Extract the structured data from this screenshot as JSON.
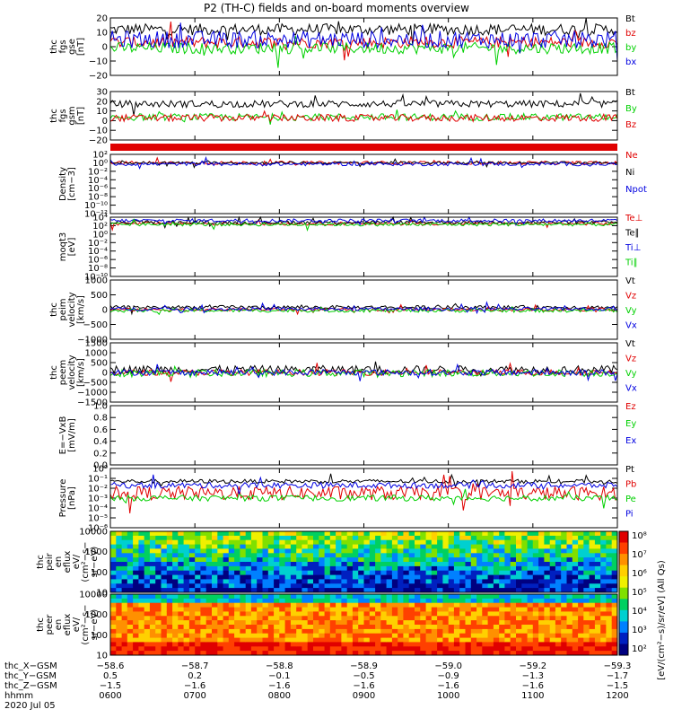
{
  "title": "P2 (TH-C) fields and on-board moments overview",
  "colors": {
    "black": "#000000",
    "red": "#e00000",
    "green": "#00d000",
    "blue": "#0000e0",
    "frame": "#000000"
  },
  "chart_data": [
    {
      "type": "line",
      "id": "fgs_gse",
      "ylabel": [
        "thc",
        "fgs",
        "gse",
        "[nT]"
      ],
      "yticks": [
        "20",
        "10",
        "0",
        "−10",
        "−20"
      ],
      "ylim": [
        -20,
        20
      ],
      "series": [
        {
          "name": "Bt",
          "color": "#000000",
          "level": 12,
          "amp": 4
        },
        {
          "name": "bz",
          "color": "#e00000",
          "level": 3,
          "amp": 4
        },
        {
          "name": "by",
          "color": "#00d000",
          "level": -1,
          "amp": 4
        },
        {
          "name": "bx",
          "color": "#0000e0",
          "level": 5,
          "amp": 6
        }
      ]
    },
    {
      "type": "line",
      "id": "fgs_gsm",
      "ylabel": [
        "thc",
        "fgs",
        "gsm",
        "[nT]"
      ],
      "yticks": [
        "30",
        "20",
        "10",
        "0",
        "−10",
        "−20"
      ],
      "ylim": [
        -25,
        30
      ],
      "series": [
        {
          "name": "Bt",
          "color": "#000000",
          "level": 16,
          "amp": 4
        },
        {
          "name": "By",
          "color": "#00d000",
          "level": 1,
          "amp": 4
        },
        {
          "name": "Bz",
          "color": "#e00000",
          "level": 0,
          "amp": 4
        }
      ]
    },
    {
      "type": "line",
      "id": "density",
      "ylabel": [
        "Density",
        "[cm−3]"
      ],
      "yticks": [
        "10²",
        "10⁰",
        "10⁻²",
        "10⁻⁴",
        "10⁻⁶",
        "10⁻⁸",
        "10⁻¹⁰",
        "10⁻¹²"
      ],
      "ylim": [
        -12,
        2
      ],
      "series": [
        {
          "name": "Ne",
          "color": "#e00000",
          "level": 0,
          "amp": 0.4
        },
        {
          "name": "Ni",
          "color": "#000000",
          "level": 0,
          "amp": 0.3
        },
        {
          "name": "Npot",
          "color": "#0000e0",
          "level": -0.3,
          "amp": 0.4
        }
      ]
    },
    {
      "type": "line",
      "id": "moqt3",
      "ylabel": [
        "moqt3",
        "[eV]"
      ],
      "yticks": [
        "10⁴",
        "10²",
        "10⁰",
        "10⁻²",
        "10⁻⁴",
        "10⁻⁶",
        "10⁻⁸",
        "10⁻¹⁰"
      ],
      "ylim": [
        -10,
        4
      ],
      "series": [
        {
          "name": "Te⊥",
          "color": "#e00000",
          "level": 2.5,
          "amp": 0.4
        },
        {
          "name": "Te∥",
          "color": "#000000",
          "level": 2.8,
          "amp": 0.4
        },
        {
          "name": "Ti⊥",
          "color": "#0000e0",
          "level": 3.2,
          "amp": 0.4
        },
        {
          "name": "Ti∥",
          "color": "#00d000",
          "level": 2.3,
          "amp": 0.4
        }
      ]
    },
    {
      "type": "line",
      "id": "peim_vel",
      "ylabel": [
        "thc",
        "peim",
        "velocity",
        "[km/s]"
      ],
      "yticks": [
        "1000",
        "500",
        "0",
        "−500",
        "−1000"
      ],
      "ylim": [
        -1000,
        1000
      ],
      "series": [
        {
          "name": "Vt",
          "color": "#000000",
          "level": 80,
          "amp": 60
        },
        {
          "name": "Vz",
          "color": "#e00000",
          "level": 0,
          "amp": 50
        },
        {
          "name": "Vy",
          "color": "#00d000",
          "level": -30,
          "amp": 60
        },
        {
          "name": "Vx",
          "color": "#0000e0",
          "level": 20,
          "amp": 60
        }
      ]
    },
    {
      "type": "line",
      "id": "peem_vel",
      "ylabel": [
        "thc",
        "peem",
        "velocity",
        "[km/s]"
      ],
      "yticks": [
        "1500",
        "1000",
        "500",
        "0",
        "−500",
        "−1000",
        "−1500"
      ],
      "ylim": [
        -1500,
        1500
      ],
      "series": [
        {
          "name": "Vt",
          "color": "#000000",
          "level": 150,
          "amp": 200
        },
        {
          "name": "Vz",
          "color": "#e00000",
          "level": 0,
          "amp": 150
        },
        {
          "name": "Vy",
          "color": "#00d000",
          "level": -30,
          "amp": 180
        },
        {
          "name": "Vx",
          "color": "#0000e0",
          "level": 0,
          "amp": 150
        }
      ]
    },
    {
      "type": "line",
      "id": "efield",
      "ylabel": [
        "E=−VxB",
        "[mV/m]"
      ],
      "yticks": [
        "1.0",
        "0.8",
        "0.6",
        "0.4",
        "0.2",
        "0.0"
      ],
      "ylim": [
        0,
        1
      ],
      "series": [
        {
          "name": "Ez",
          "color": "#e00000"
        },
        {
          "name": "Ey",
          "color": "#00d000"
        },
        {
          "name": "Ex",
          "color": "#0000e0"
        }
      ]
    },
    {
      "type": "line",
      "id": "pressure",
      "ylabel": [
        "Pressure",
        "[nPa]"
      ],
      "yticks": [
        "10⁰",
        "10⁻¹",
        "10⁻²",
        "10⁻³",
        "10⁻⁴",
        "10⁻⁵",
        "10⁻⁶"
      ],
      "ylim": [
        -6,
        0
      ],
      "series": [
        {
          "name": "Pt",
          "color": "#000000",
          "level": -1.3,
          "amp": 0.2
        },
        {
          "name": "Pb",
          "color": "#e00000",
          "level": -2.5,
          "amp": 0.7
        },
        {
          "name": "Pe",
          "color": "#00d000",
          "level": -3.0,
          "amp": 0.3
        },
        {
          "name": "Pi",
          "color": "#0000e0",
          "level": -1.7,
          "amp": 0.3
        }
      ]
    },
    {
      "type": "heatmap",
      "id": "peir",
      "ylabel": [
        "thc",
        "peir",
        "en",
        "eflux",
        "eV/",
        "(cm²−s−",
        "sr−eV)"
      ],
      "yticks": [
        "10000",
        "1000",
        "100",
        "10"
      ],
      "ylim": [
        10,
        20000
      ]
    },
    {
      "type": "heatmap",
      "id": "peer",
      "ylabel": [
        "thc",
        "peer",
        "en",
        "eflux",
        "eV/",
        "(cm²−s−",
        "sr−eV)"
      ],
      "yticks": [
        "10000",
        "1000",
        "100",
        "10"
      ],
      "ylim": [
        10,
        20000
      ]
    }
  ],
  "colorbar": {
    "ticks": [
      "10⁸",
      "10⁷",
      "10⁶",
      "10⁵",
      "10⁴",
      "10³",
      "10²"
    ],
    "label": "[eV/(cm²−s)/sr/eV] (All Qs)",
    "colors": [
      "#e00000",
      "#ff4000",
      "#ff9000",
      "#ffd000",
      "#f0f000",
      "#80e000",
      "#00d060",
      "#00d0d0",
      "#0080ff",
      "#0020c0",
      "#000080"
    ]
  },
  "x_axis": {
    "ticks": [
      "0600",
      "0700",
      "0800",
      "0900",
      "1000",
      "1100",
      "1200"
    ]
  },
  "footer": {
    "rows": [
      {
        "label": "thc_X−GSM",
        "values": [
          "−58.6",
          "−58.7",
          "−58.8",
          "−58.9",
          "−59.0",
          "−59.2",
          "−59.3"
        ]
      },
      {
        "label": "thc_Y−GSM",
        "values": [
          "0.5",
          "0.2",
          "−0.1",
          "−0.5",
          "−0.9",
          "−1.3",
          "−1.7"
        ]
      },
      {
        "label": "thc_Z−GSM",
        "values": [
          "−1.5",
          "−1.6",
          "−1.6",
          "−1.6",
          "−1.6",
          "−1.6",
          "−1.5"
        ]
      },
      {
        "label": "hhmm",
        "values": [
          "0600",
          "0700",
          "0800",
          "0900",
          "1000",
          "1100",
          "1200"
        ]
      }
    ],
    "date": "2020 Jul 05"
  }
}
